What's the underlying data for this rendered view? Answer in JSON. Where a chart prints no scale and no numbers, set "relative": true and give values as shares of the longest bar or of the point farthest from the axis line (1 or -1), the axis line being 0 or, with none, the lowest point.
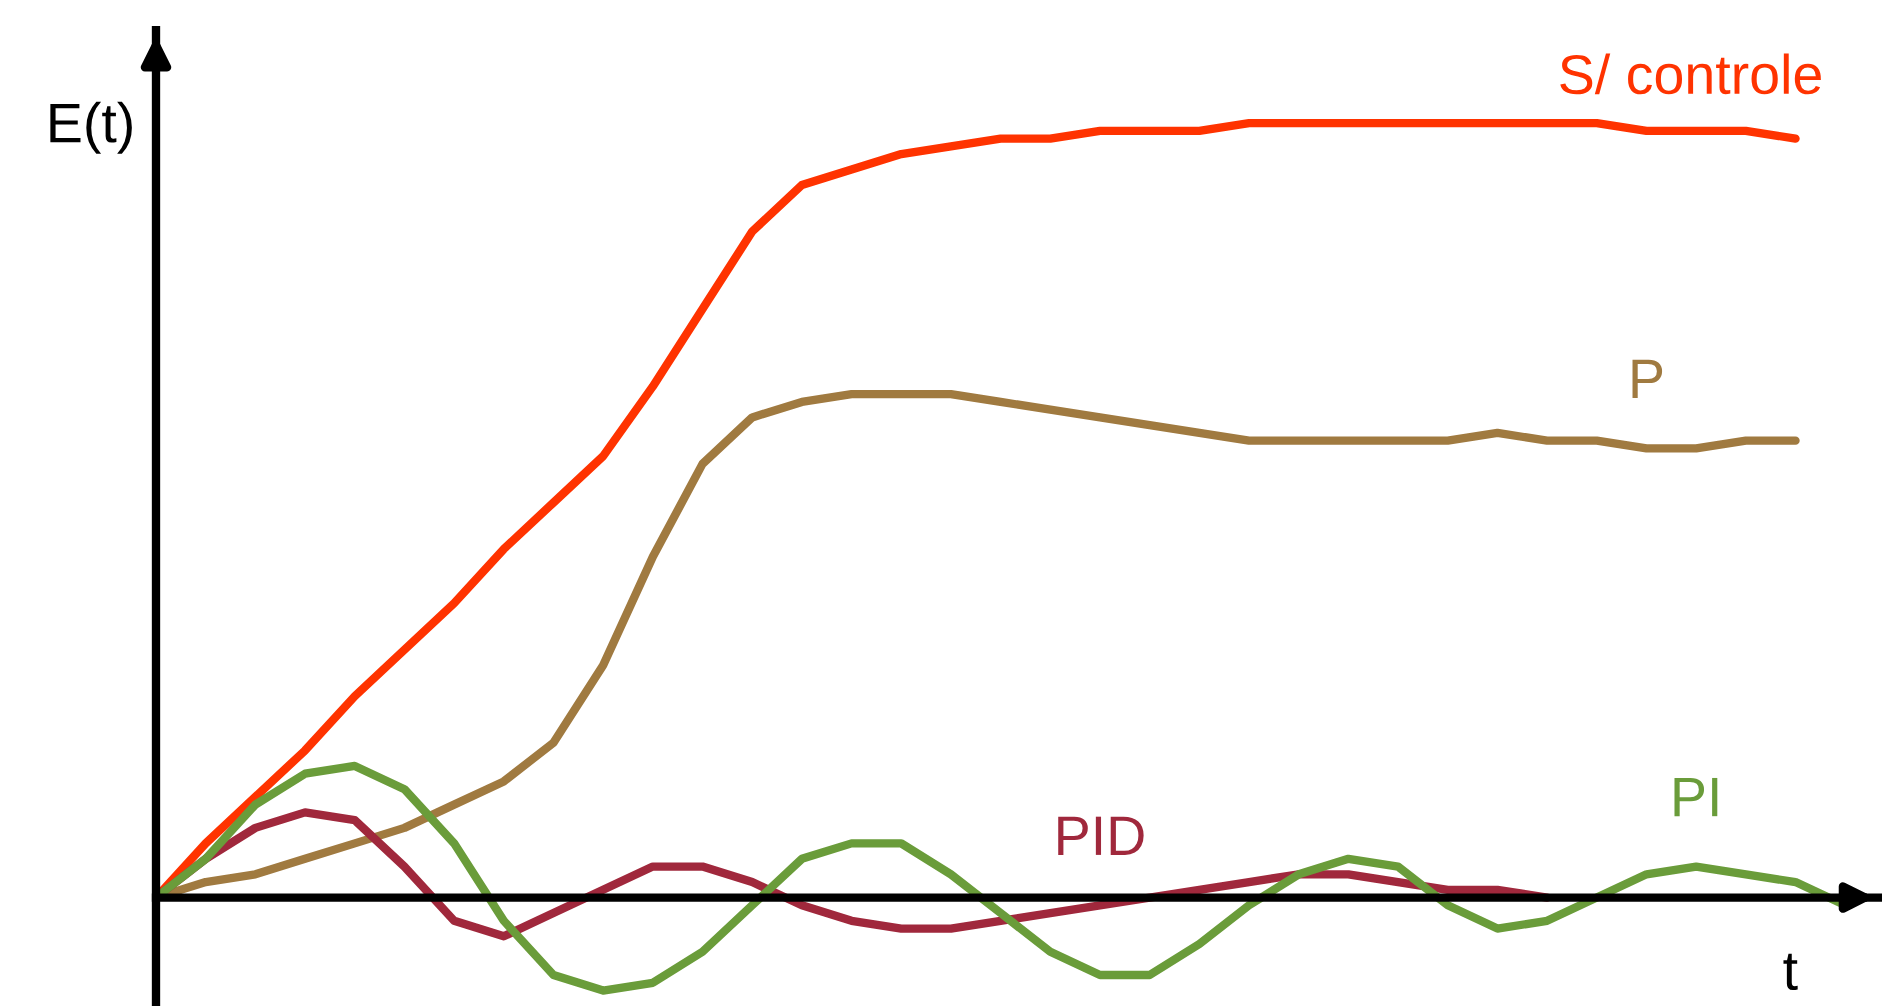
{
  "chart_data": {
    "type": "line",
    "relative": true,
    "xlabel": "t",
    "ylabel": "E(t)",
    "legend": false,
    "marker": "none",
    "line_style": "solid",
    "categories": [
      null,
      null,
      null,
      null,
      null,
      null,
      null,
      null,
      null,
      null,
      null,
      null,
      null,
      null,
      null,
      null,
      null,
      null,
      null,
      null,
      null,
      null,
      null,
      null,
      null,
      null,
      null,
      null,
      null,
      null,
      null,
      null,
      null,
      null,
      null
    ],
    "series": [
      {
        "name": "S/ controle",
        "color": "#ff3300",
        "values": [
          0,
          0.07,
          0.13,
          0.19,
          0.26,
          0.32,
          0.38,
          0.45,
          0.51,
          0.57,
          0.66,
          0.76,
          0.86,
          0.92,
          0.94,
          0.96,
          0.97,
          0.98,
          0.98,
          0.99,
          0.99,
          0.99,
          1.0,
          1.0,
          1.0,
          1.0,
          1.0,
          1.0,
          1.0,
          1.0,
          0.99,
          0.99,
          0.99,
          0.98,
          null
        ]
      },
      {
        "name": "P",
        "color": "#a07a40",
        "values": [
          0,
          0.02,
          0.03,
          0.05,
          0.07,
          0.09,
          0.12,
          0.15,
          0.2,
          0.3,
          0.44,
          0.56,
          0.62,
          0.64,
          0.65,
          0.65,
          0.65,
          0.64,
          0.63,
          0.62,
          0.61,
          0.6,
          0.59,
          0.59,
          0.59,
          0.59,
          0.59,
          0.6,
          0.59,
          0.59,
          0.58,
          0.58,
          0.59,
          0.59,
          null
        ]
      },
      {
        "name": "PID",
        "color": "#a0283c",
        "values": [
          0,
          0.05,
          0.09,
          0.11,
          0.1,
          0.04,
          -0.03,
          -0.05,
          -0.02,
          0.01,
          0.04,
          0.04,
          0.02,
          -0.01,
          -0.03,
          -0.04,
          -0.04,
          -0.03,
          -0.02,
          -0.01,
          0,
          0.01,
          0.02,
          0.03,
          0.03,
          0.02,
          0.01,
          0.01,
          0,
          null,
          null,
          null,
          null,
          null,
          null
        ]
      },
      {
        "name": "PI",
        "color": "#6a9c3a",
        "values": [
          0,
          0.05,
          0.12,
          0.16,
          0.17,
          0.14,
          0.07,
          -0.03,
          -0.1,
          -0.12,
          -0.11,
          -0.07,
          -0.01,
          0.05,
          0.07,
          0.07,
          0.03,
          -0.02,
          -0.07,
          -0.1,
          -0.1,
          -0.06,
          -0.01,
          0.03,
          0.05,
          0.04,
          -0.01,
          -0.04,
          -0.03,
          0,
          0.03,
          0.04,
          0.03,
          0.02,
          -0.01
        ]
      }
    ]
  }
}
